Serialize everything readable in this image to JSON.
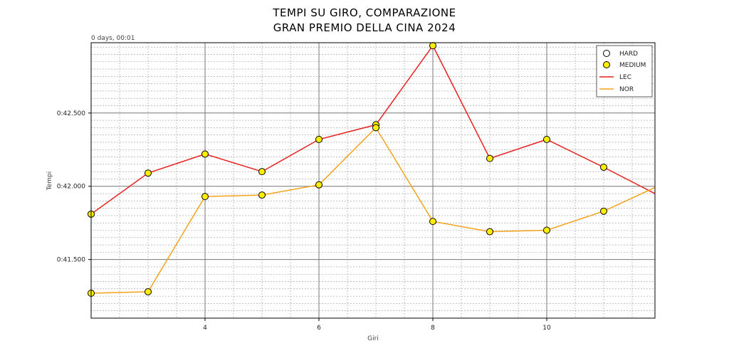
{
  "chart_data": {
    "type": "line",
    "title_line1": "TEMPI SU GIRO, COMPARAZIONE",
    "title_line2": "GRAN PREMIO DELLA CINA 2024",
    "xlabel": "Giri",
    "ylabel": "Tempi",
    "y_offset_label": "0 days, 00:01",
    "xlim": [
      2,
      11.9
    ],
    "ylim": [
      41.1,
      42.98
    ],
    "x_ticks": [
      4,
      6,
      8,
      10
    ],
    "y_ticks": [
      41.5,
      42.0,
      42.5
    ],
    "y_tick_labels": [
      "0:41.500",
      "0:42.000",
      "0:42.500"
    ],
    "grid": true,
    "legend_position": "top-right",
    "legend": [
      {
        "label": "HARD",
        "kind": "marker-hollow"
      },
      {
        "label": "MEDIUM",
        "kind": "marker-yellow"
      },
      {
        "label": "LEC",
        "kind": "line",
        "color": "#e8201f"
      },
      {
        "label": "NOR",
        "kind": "line",
        "color": "#f5a21b"
      }
    ],
    "series": [
      {
        "name": "LEC",
        "color": "#e8201f",
        "x": [
          2,
          3,
          4,
          5,
          6,
          7,
          8,
          9,
          10,
          11,
          12
        ],
        "y": [
          41.81,
          42.09,
          42.22,
          42.1,
          42.32,
          42.42,
          42.96,
          42.19,
          42.32,
          42.13,
          41.93
        ],
        "compound": [
          "MEDIUM",
          "MEDIUM",
          "MEDIUM",
          "MEDIUM",
          "MEDIUM",
          "MEDIUM",
          "MEDIUM",
          "MEDIUM",
          "MEDIUM",
          "MEDIUM",
          "MEDIUM"
        ]
      },
      {
        "name": "NOR",
        "color": "#f5a21b",
        "x": [
          2,
          3,
          4,
          5,
          6,
          7,
          8,
          9,
          10,
          11,
          12
        ],
        "y": [
          41.27,
          41.28,
          41.93,
          41.94,
          42.01,
          42.4,
          41.76,
          41.69,
          41.7,
          41.83,
          42.01
        ],
        "compound": [
          "MEDIUM",
          "MEDIUM",
          "MEDIUM",
          "MEDIUM",
          "MEDIUM",
          "MEDIUM",
          "MEDIUM",
          "MEDIUM",
          "MEDIUM",
          "MEDIUM",
          "MEDIUM"
        ]
      }
    ]
  },
  "colors": {
    "medium_marker": "#ffee00",
    "grid_major": "#777777",
    "grid_minor": "#999999"
  }
}
